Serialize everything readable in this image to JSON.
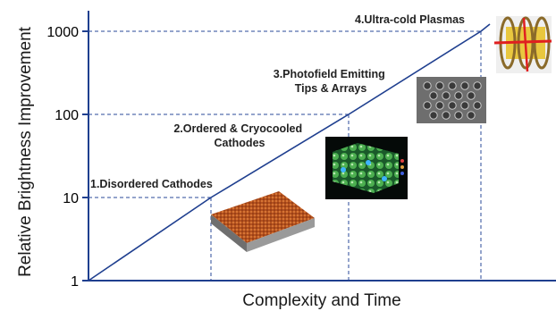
{
  "chart_data": {
    "type": "line",
    "ylabel": "Relative Brightness Improvement",
    "xlabel": "Complexity and Time",
    "yscale": "log",
    "ylim": [
      1,
      1000
    ],
    "yticks": [
      1,
      10,
      100,
      1000
    ],
    "ytick_labels": [
      "1",
      "10",
      "100",
      "1000"
    ],
    "grid": false,
    "series": [
      {
        "x": [
          0,
          1,
          2,
          3
        ],
        "values": [
          1,
          10,
          100,
          1000
        ]
      }
    ],
    "annotations": [
      {
        "lines": [
          "1.Disordered Cathodes"
        ],
        "picture": "rough-surface-image"
      },
      {
        "lines": [
          "2.Ordered & Cryocooled",
          "Cathodes"
        ],
        "picture": "crystal-lattice-image"
      },
      {
        "lines": [
          "3.Photofield Emitting",
          "Tips & Arrays"
        ],
        "picture": "tip-array-image"
      },
      {
        "lines": [
          "4.Ultra-cold Plasmas"
        ],
        "picture": "plasma-trap-image"
      }
    ],
    "colors": {
      "axis": "#1f3f8f",
      "line": "#1f3f8f",
      "guide": "#2a4a9a"
    }
  }
}
